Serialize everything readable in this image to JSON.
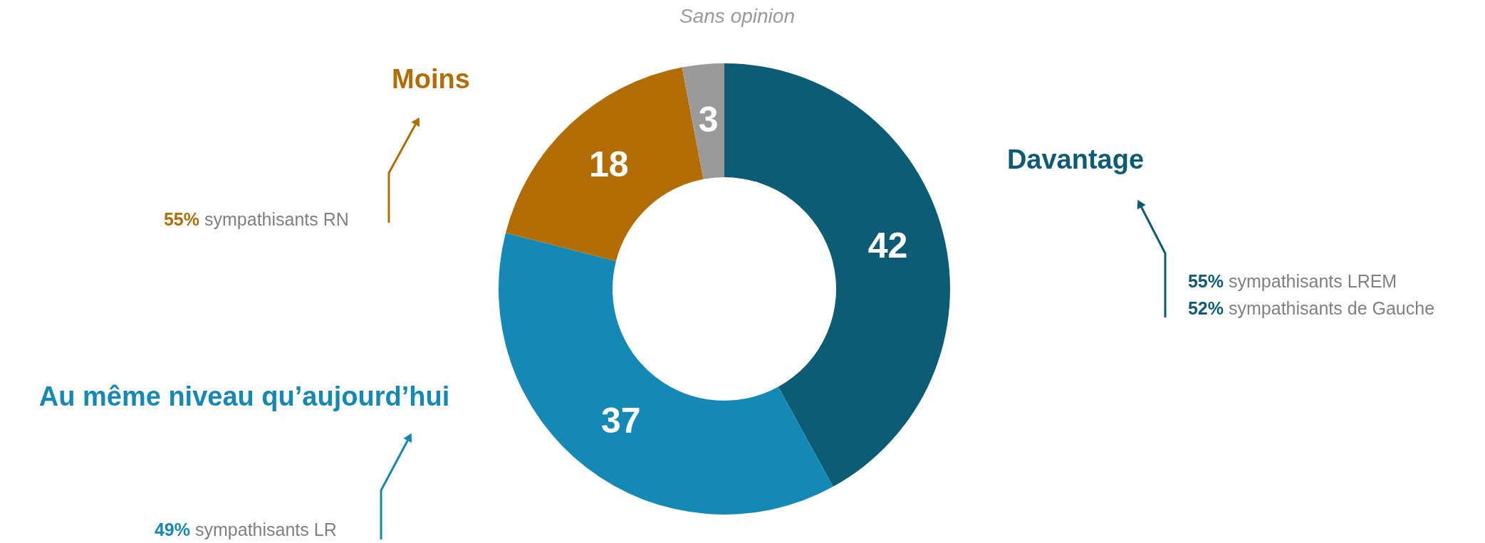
{
  "chart_data": {
    "type": "donut",
    "categories": [
      "Davantage",
      "Au même niveau qu’aujourd’hui",
      "Moins",
      "Sans opinion"
    ],
    "values": [
      42,
      37,
      18,
      3
    ],
    "colors": [
      "#0d5c75",
      "#1589b5",
      "#b36d05",
      "#9a9a9a"
    ],
    "data_labels": true,
    "annotations": [
      "55% sympathisants RN",
      "55% sympathisants LREM",
      "52% sympathisants de Gauche",
      "49% sympathisants LR"
    ]
  }
}
